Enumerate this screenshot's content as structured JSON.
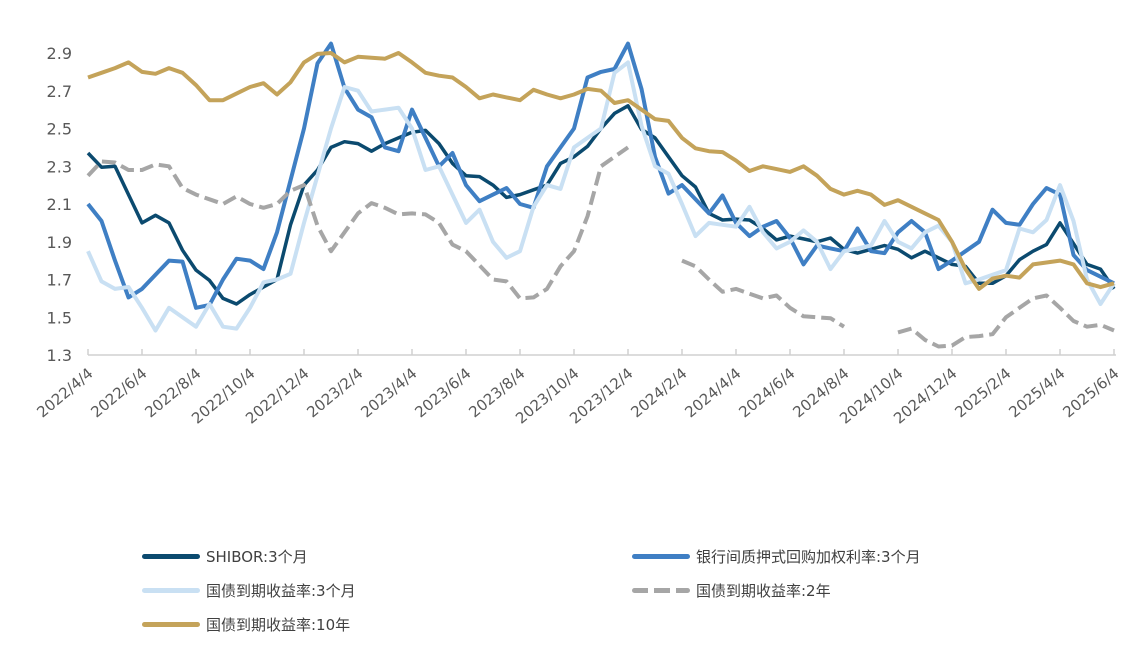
{
  "chart_data": {
    "type": "line",
    "title": "",
    "xlabel": "",
    "ylabel": "",
    "ylim": [
      1.3,
      3.0
    ],
    "yticks": [
      "1.3",
      "1.5",
      "1.7",
      "1.9",
      "2.1",
      "2.3",
      "2.5",
      "2.7",
      "2.9"
    ],
    "xticks": [
      "2022/4/4",
      "2022/6/4",
      "2022/8/4",
      "2022/10/4",
      "2022/12/4",
      "2023/2/4",
      "2023/4/4",
      "2023/6/4",
      "2023/8/4",
      "2023/10/4",
      "2023/12/4",
      "2024/2/4",
      "2024/4/4",
      "2024/6/4",
      "2024/8/4",
      "2024/10/4",
      "2024/12/4",
      "2025/2/4",
      "2025/4/4",
      "2025/6/4"
    ],
    "x_note": "monthly samples from 2022/4 to 2025/6",
    "legend_position": "bottom",
    "series": [
      {
        "name": "SHIBOR:3个月",
        "color": "#0b4a6f",
        "dash": false,
        "values": [
          2.37,
          2.3,
          2.0,
          2.0,
          1.75,
          1.6,
          1.62,
          1.7,
          2.2,
          2.4,
          2.42,
          2.42,
          2.48,
          2.42,
          2.25,
          2.2,
          2.15,
          2.2,
          2.35,
          2.5,
          2.62,
          2.45,
          2.25,
          2.05,
          2.02,
          1.97,
          1.93,
          1.9,
          1.86,
          1.86,
          1.86,
          1.85,
          1.78,
          1.68,
          1.72,
          1.85,
          2.0,
          1.78,
          1.65
        ]
      },
      {
        "name": "银行间质押式回购加权利率:3个月",
        "color": "#3f7fc4",
        "dash": false,
        "values": [
          2.1,
          1.8,
          1.65,
          1.8,
          1.55,
          1.7,
          1.8,
          1.95,
          2.5,
          2.95,
          2.6,
          2.4,
          2.6,
          2.3,
          2.2,
          2.15,
          2.1,
          2.3,
          2.5,
          2.8,
          2.95,
          2.35,
          2.2,
          2.05,
          2.0,
          1.98,
          1.92,
          1.88,
          1.85,
          1.85,
          1.95,
          1.95,
          1.8,
          1.9,
          2.0,
          2.1,
          2.15,
          1.75,
          1.68
        ]
      },
      {
        "name": "国债到期收益率:3个月",
        "color": "#c9e0f3",
        "dash": false,
        "values": [
          1.85,
          1.65,
          1.55,
          1.55,
          1.45,
          1.45,
          1.55,
          1.7,
          2.0,
          2.5,
          2.7,
          2.6,
          2.5,
          2.3,
          2.0,
          1.9,
          1.85,
          2.2,
          2.4,
          2.5,
          2.85,
          2.3,
          2.1,
          2.0,
          1.98,
          1.95,
          1.9,
          1.9,
          1.85,
          1.88,
          1.9,
          1.95,
          1.9,
          1.7,
          1.75,
          1.95,
          2.2,
          1.7,
          1.68
        ]
      },
      {
        "name": "国债到期收益率:2年",
        "color": "#a6a6a6",
        "dash": true,
        "values": [
          2.25,
          2.32,
          2.28,
          2.3,
          2.15,
          2.1,
          2.1,
          2.1,
          2.2,
          1.85,
          2.05,
          2.08,
          2.05,
          2.0,
          1.85,
          1.7,
          1.6,
          1.65,
          1.85,
          2.3,
          2.4,
          null,
          1.8,
          1.7,
          1.65,
          1.6,
          1.55,
          1.5,
          1.45,
          null,
          1.42,
          1.38,
          1.35,
          1.4,
          1.5,
          1.6,
          1.55,
          1.45,
          1.43
        ]
      },
      {
        "name": "国债到期收益率:10年",
        "color": "#c4a35a",
        "dash": false,
        "values": [
          2.77,
          2.82,
          2.8,
          2.82,
          2.73,
          2.65,
          2.72,
          2.68,
          2.85,
          2.9,
          2.88,
          2.87,
          2.85,
          2.78,
          2.72,
          2.68,
          2.65,
          2.68,
          2.68,
          2.7,
          2.65,
          2.55,
          2.45,
          2.38,
          2.33,
          2.3,
          2.27,
          2.25,
          2.15,
          2.15,
          2.12,
          2.05,
          1.9,
          1.65,
          1.72,
          1.78,
          1.8,
          1.68,
          1.68
        ]
      }
    ]
  }
}
